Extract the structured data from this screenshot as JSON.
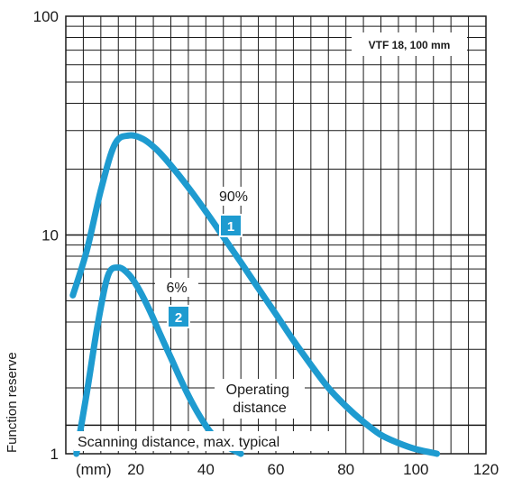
{
  "chart_data": {
    "type": "line",
    "title": "VTF 18, 100 mm",
    "xlabel": "(mm)",
    "ylabel": "Function reserve",
    "xlim": [
      0,
      120
    ],
    "ylim": [
      1,
      100
    ],
    "yscale": "log",
    "grid": true,
    "legend": "top-right",
    "x_ticks": [
      "20",
      "40",
      "60",
      "80",
      "100",
      "120"
    ],
    "y_ticks": [
      "1",
      "10",
      "100"
    ],
    "series": [
      {
        "name": "90%",
        "badge": "1",
        "color": "#1e9bd0",
        "x": [
          2,
          6,
          10,
          14,
          18,
          22,
          26,
          30,
          35,
          40,
          45,
          50,
          55,
          60,
          65,
          70,
          75,
          80,
          85,
          90,
          95,
          100,
          106
        ],
        "y": [
          5.3,
          8.5,
          16,
          26,
          28.5,
          27.5,
          24.5,
          20.8,
          16.5,
          12.8,
          9.8,
          7.5,
          5.7,
          4.35,
          3.3,
          2.55,
          2.0,
          1.65,
          1.4,
          1.22,
          1.12,
          1.05,
          1.0
        ]
      },
      {
        "name": "6%",
        "badge": "2",
        "color": "#1e9bd0",
        "x": [
          3,
          6,
          9,
          12,
          15,
          18,
          21,
          24,
          27,
          30,
          33,
          36,
          39,
          42,
          46,
          50
        ],
        "y": [
          1.0,
          1.9,
          3.8,
          6.5,
          7.1,
          6.6,
          5.6,
          4.5,
          3.5,
          2.75,
          2.15,
          1.72,
          1.42,
          1.22,
          1.08,
          1.0
        ]
      }
    ],
    "threshold": {
      "y": 1.35,
      "label": "Scanning distance, max. typical"
    },
    "annotations": {
      "operating": "Operating\ndistance"
    }
  }
}
